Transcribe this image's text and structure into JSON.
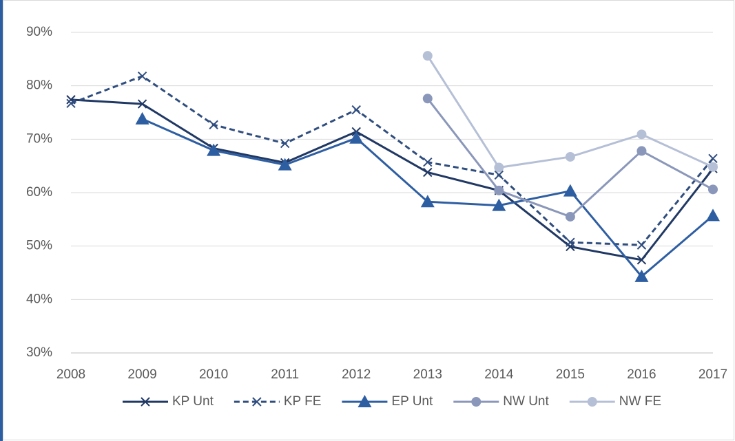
{
  "chart_data": {
    "type": "line",
    "x": [
      2008,
      2009,
      2010,
      2011,
      2012,
      2013,
      2014,
      2015,
      2016,
      2017
    ],
    "xlim": [
      2008,
      2017
    ],
    "xticks": [
      2008,
      2009,
      2010,
      2011,
      2012,
      2013,
      2014,
      2015,
      2016,
      2017
    ],
    "ylim": [
      30,
      90
    ],
    "yticks": [
      {
        "value": 30,
        "label": "30%"
      },
      {
        "value": 40,
        "label": "40%"
      },
      {
        "value": 50,
        "label": "50%"
      },
      {
        "value": 60,
        "label": "60%"
      },
      {
        "value": 70,
        "label": "70%"
      },
      {
        "value": 80,
        "label": "80%"
      },
      {
        "value": 90,
        "label": "90%"
      }
    ],
    "grid": true,
    "legend": "bottom",
    "series": [
      {
        "name": "KP Unt",
        "color": "#203864",
        "marker": "x",
        "dash": false,
        "values": [
          77.4,
          76.6,
          68.3,
          65.6,
          71.4,
          63.8,
          60.4,
          49.9,
          47.4,
          64.5
        ]
      },
      {
        "name": "KP FE",
        "color": "#2f4d7e",
        "marker": "x",
        "dash": true,
        "values": [
          76.7,
          81.8,
          72.7,
          69.2,
          75.5,
          65.7,
          63.3,
          50.7,
          50.2,
          66.4
        ]
      },
      {
        "name": "EP Unt",
        "color": "#2e5ea2",
        "marker": "triangle",
        "dash": false,
        "values": [
          null,
          73.8,
          67.9,
          65.2,
          70.2,
          58.3,
          57.6,
          60.3,
          44.3,
          55.7
        ]
      },
      {
        "name": "NW Unt",
        "color": "#8a97ba",
        "marker": "circle",
        "dash": false,
        "values": [
          null,
          null,
          null,
          null,
          null,
          77.6,
          60.4,
          55.5,
          67.8,
          60.6
        ]
      },
      {
        "name": "NW FE",
        "color": "#b5bfd6",
        "marker": "circle",
        "dash": false,
        "values": [
          null,
          null,
          null,
          null,
          null,
          85.6,
          64.7,
          66.7,
          70.9,
          64.8
        ]
      }
    ]
  }
}
